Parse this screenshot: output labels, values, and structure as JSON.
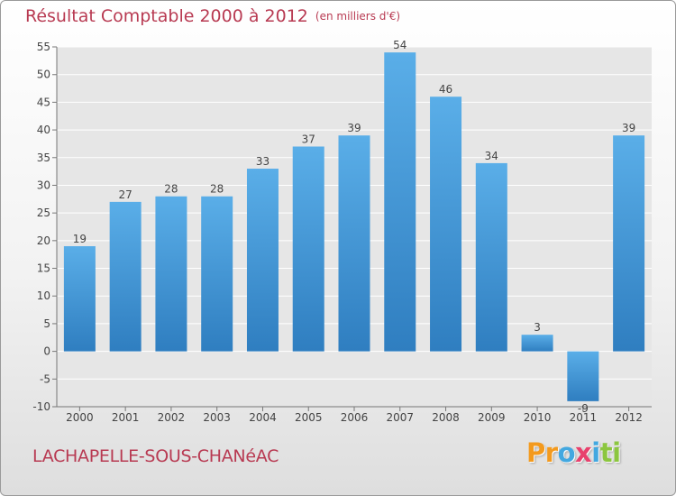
{
  "header": {
    "title": "Résultat Comptable 2000 à 2012",
    "unit": "(en milliers d'€)"
  },
  "footer": {
    "commune": "LACHAPELLE-SOUS-CHANéAC",
    "logo_text": "Proxiti",
    "logo_letters": [
      {
        "ch": "P",
        "color": "#f39a1e"
      },
      {
        "ch": "r",
        "color": "#f39a1e"
      },
      {
        "ch": "o",
        "color": "#43a8e0"
      },
      {
        "ch": "x",
        "color": "#e8416d"
      },
      {
        "ch": "i",
        "color": "#43a8e0"
      },
      {
        "ch": "t",
        "color": "#8cc63f"
      },
      {
        "ch": "i",
        "color": "#8cc63f"
      }
    ]
  },
  "colors": {
    "title": "#b83a52",
    "bar_top": "#5aaee8",
    "bar_bottom": "#2f7ec0",
    "plot_bg": "#e6e6e6",
    "grid": "#ffffff"
  },
  "chart_data": {
    "type": "bar",
    "title": "Résultat Comptable 2000 à 2012",
    "subtitle": "(en milliers d'€)",
    "xlabel": "",
    "ylabel": "",
    "categories": [
      "2000",
      "2001",
      "2002",
      "2003",
      "2004",
      "2005",
      "2006",
      "2007",
      "2008",
      "2009",
      "2010",
      "2011",
      "2012"
    ],
    "values": [
      19,
      27,
      28,
      28,
      33,
      37,
      39,
      54,
      46,
      34,
      3,
      -9,
      39
    ],
    "value_labels": [
      "19",
      "27",
      "28",
      "28",
      "33",
      "37",
      "39",
      "54",
      "46",
      "34",
      "3",
      "-9",
      "39"
    ],
    "ylim": [
      -10,
      55
    ],
    "yticks": [
      -10,
      -5,
      0,
      5,
      10,
      15,
      20,
      25,
      30,
      35,
      40,
      45,
      50,
      55
    ],
    "grid": true
  }
}
